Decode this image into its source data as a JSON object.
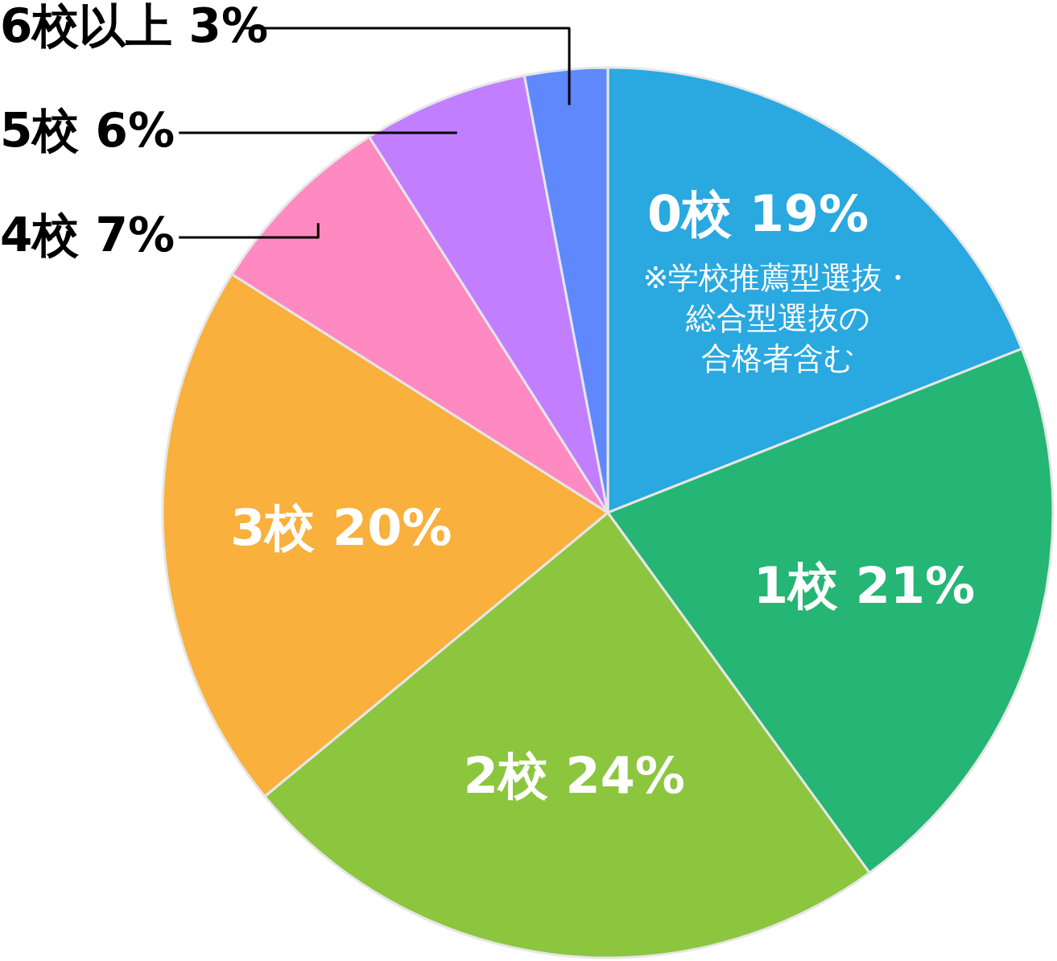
{
  "chart_data": {
    "type": "pie",
    "categories": [
      "0校",
      "1校",
      "2校",
      "3校",
      "4校",
      "5校",
      "6校以上"
    ],
    "values": [
      19,
      21,
      24,
      20,
      7,
      6,
      3
    ],
    "value_labels": [
      "19%",
      "21%",
      "24%",
      "20%",
      "7%",
      "6%",
      "3%"
    ],
    "colors": [
      "#2aa8e0",
      "#25b574",
      "#8cc63f",
      "#f9b03c",
      "#ff8ac2",
      "#c17fff",
      "#5e88fc"
    ],
    "annotations": [
      "※学校推薦型選抜・総合型選抜の合格者含む"
    ]
  }
}
